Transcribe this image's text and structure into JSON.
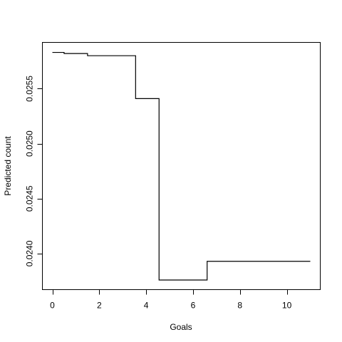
{
  "chart_data": {
    "type": "line",
    "step": true,
    "title": "",
    "xlabel": "Goals",
    "ylabel": "Predicted count",
    "xlim": [
      0,
      11
    ],
    "ylim": [
      0.02376,
      0.02584
    ],
    "xticks": [
      0,
      2,
      4,
      6,
      8,
      10
    ],
    "xtick_labels": [
      "0",
      "2",
      "4",
      "6",
      "8",
      "10"
    ],
    "yticks": [
      0.024,
      0.0245,
      0.025,
      0.0255
    ],
    "ytick_labels": [
      "0.0240",
      "0.0245",
      "0.0250",
      "0.0255"
    ],
    "grid": false,
    "legend": "none",
    "line_color": "#000000",
    "series": [
      {
        "x": [
          0,
          0.5,
          1.5,
          3.5,
          3.55,
          4.5,
          4.55,
          6.5,
          6.6,
          11
        ],
        "y": [
          0.02583,
          0.02582,
          0.0258,
          0.0258,
          0.02541,
          0.02541,
          0.02376,
          0.02376,
          0.02393,
          0.02393
        ]
      }
    ]
  }
}
